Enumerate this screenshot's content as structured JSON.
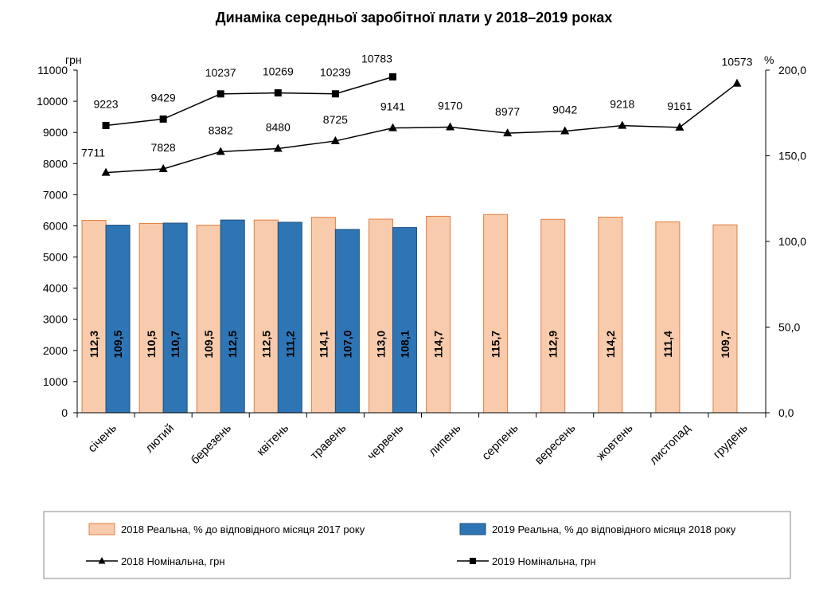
{
  "chart_data": {
    "type": "bar",
    "title": "Динаміка середньої заробітної плати у 2018–2019 роках",
    "categories": [
      "січень",
      "лютий",
      "березень",
      "квітень",
      "травень",
      "червень",
      "липень",
      "серпень",
      "вересень",
      "жовтень",
      "листопад",
      "грудень"
    ],
    "left_axis": {
      "unit_label": "грн",
      "range": [
        0,
        11000
      ],
      "step": 1000,
      "ticks": [
        "0",
        "1000",
        "2000",
        "3000",
        "4000",
        "5000",
        "6000",
        "7000",
        "8000",
        "9000",
        "10000",
        "11000"
      ]
    },
    "right_axis": {
      "unit_label": "%",
      "range": [
        0,
        200
      ],
      "step": 50,
      "ticks": [
        "0,0",
        "50,0",
        "100,0",
        "150,0",
        "200,0"
      ]
    },
    "bar_series": [
      {
        "name": "2018 Реальна, % до відповідного місяця 2017 року",
        "axis": "right",
        "color": "#F8CBAD",
        "edge": "#E07E3E",
        "values": [
          112.3,
          110.5,
          109.5,
          112.5,
          114.1,
          113.0,
          114.7,
          115.7,
          112.9,
          114.2,
          111.4,
          109.7
        ],
        "labels": [
          "112,3",
          "110,5",
          "109,5",
          "112,5",
          "114,1",
          "113,0",
          "114,7",
          "115,7",
          "112,9",
          "114,2",
          "111,4",
          "109,7"
        ]
      },
      {
        "name": "2019 Реальна, % до відповідного місяця 2018 року",
        "axis": "right",
        "color": "#2E75B6",
        "edge": "#1F4E79",
        "values": [
          109.5,
          110.7,
          112.5,
          111.2,
          107.0,
          108.1
        ],
        "labels": [
          "109,5",
          "110,7",
          "112,5",
          "111,2",
          "107,0",
          "108,1"
        ]
      }
    ],
    "line_series": [
      {
        "name": "2018 Номінальна, грн",
        "axis": "left",
        "marker": "triangle",
        "values": [
          7711,
          7828,
          8382,
          8480,
          8725,
          9141,
          9170,
          8977,
          9042,
          9218,
          9161,
          10573
        ],
        "labels": [
          "7711",
          "7828",
          "8382",
          "8480",
          "8725",
          "9141",
          "9170",
          "8977",
          "9042",
          "9218",
          "9161",
          "10573"
        ]
      },
      {
        "name": "2019 Номінальна, грн",
        "axis": "left",
        "marker": "square",
        "values": [
          9223,
          9429,
          10237,
          10269,
          10239,
          10783
        ],
        "labels": [
          "9223",
          "9429",
          "10237",
          "10269",
          "10239",
          "10783"
        ]
      }
    ],
    "legend": {
      "placement": "bottom",
      "items": [
        "2018 Реальна, % до відповідного місяця 2017 року",
        "2019 Реальна, % до відповідного місяця 2018 року",
        "2018 Номінальна, грн",
        "2019 Номінальна, грн"
      ]
    }
  }
}
